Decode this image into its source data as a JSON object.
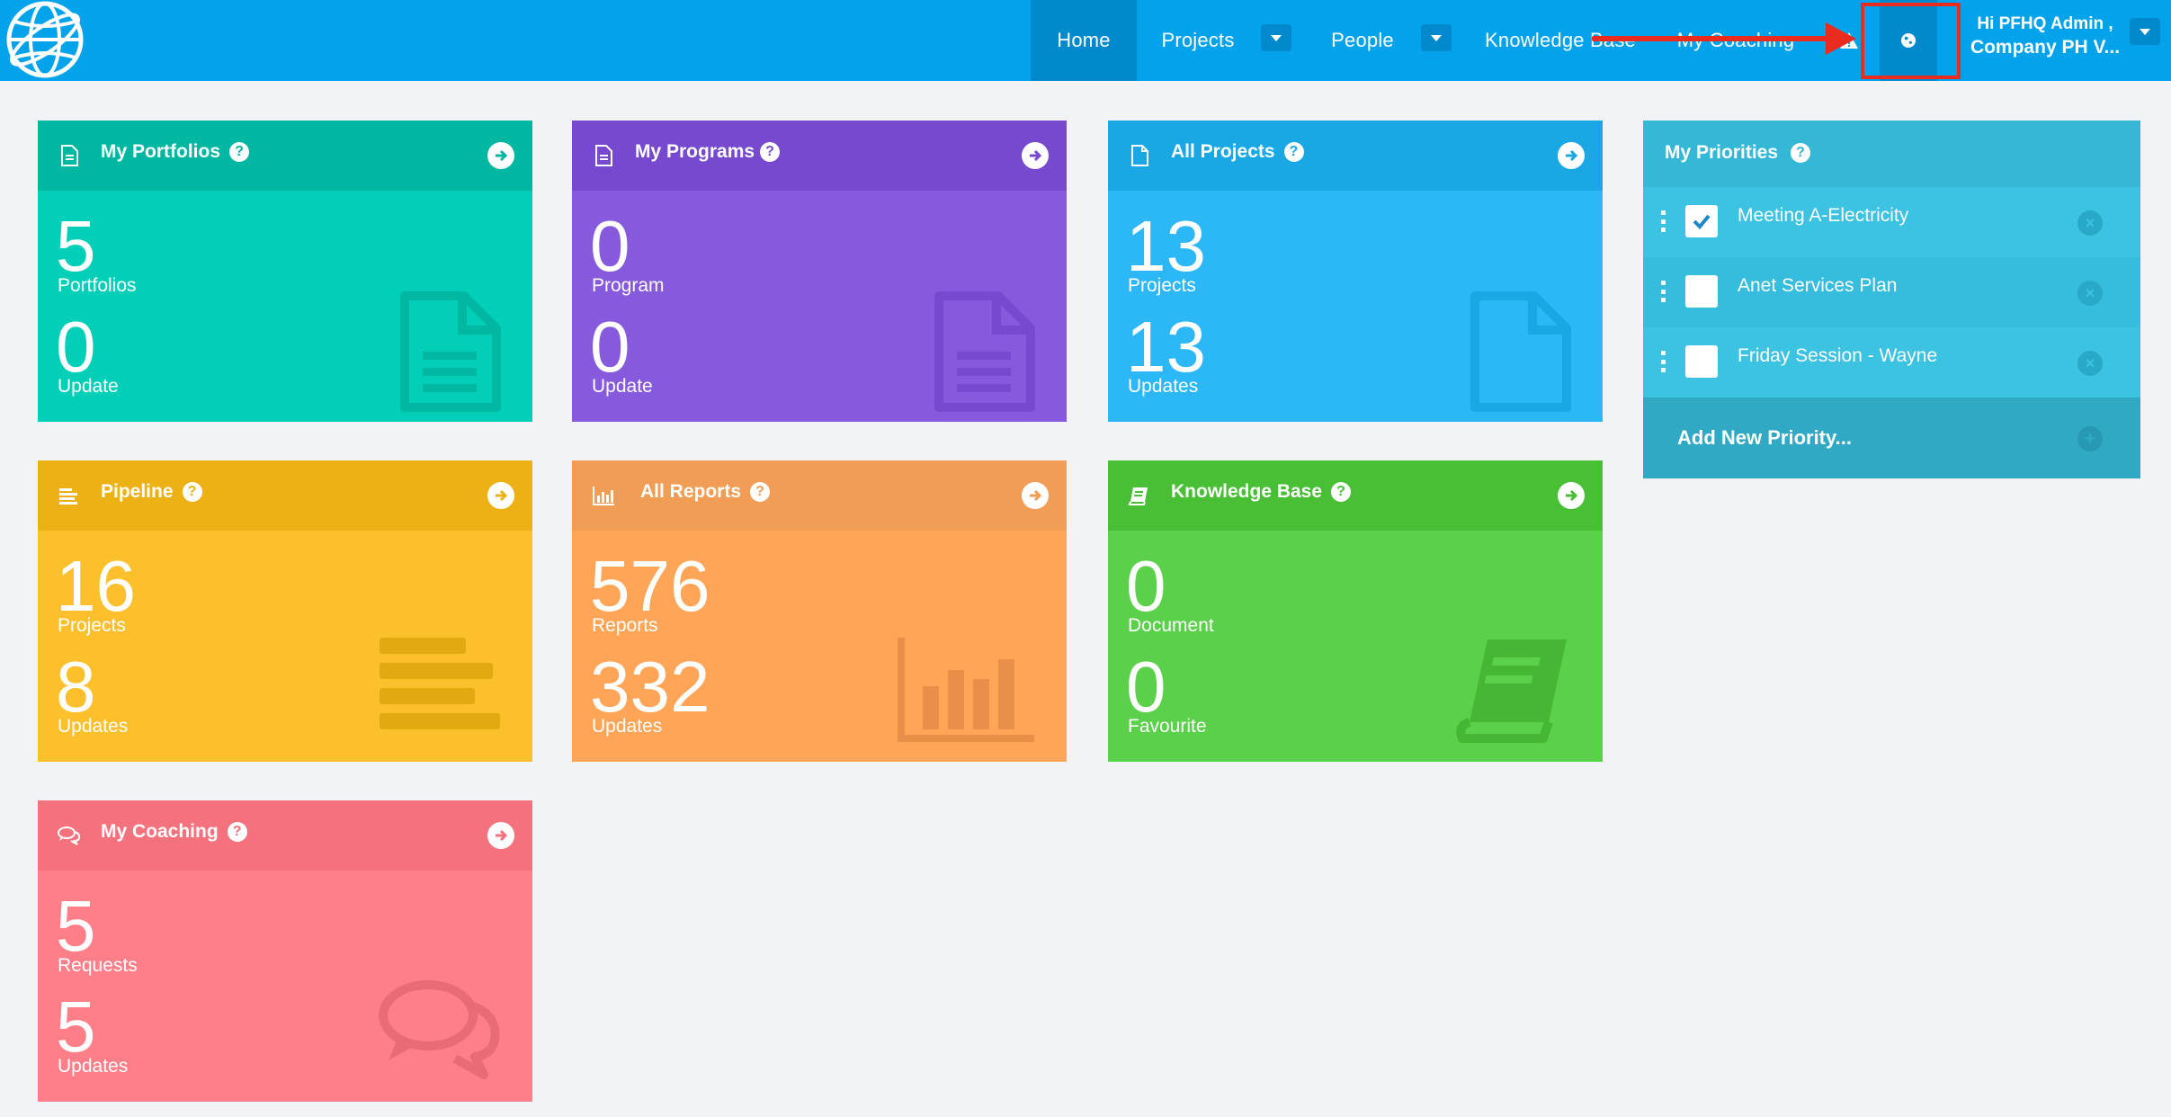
{
  "nav": {
    "home": "Home",
    "projects": "Projects",
    "people": "People",
    "knowledge_base": "Knowledge Base",
    "my_coaching": "My Coaching"
  },
  "user": {
    "greeting": "Hi PFHQ Admin ,",
    "company": "Company PH V..."
  },
  "tiles": {
    "portfolios": {
      "title": "My Portfolios",
      "num1": "5",
      "label1": "Portfolios",
      "num2": "0",
      "label2": "Update",
      "head_color": "#00b7a1",
      "body_color": "#01cfb7"
    },
    "programs": {
      "title": "My Programs",
      "num1": "0",
      "label1": "Program",
      "num2": "0",
      "label2": "Update",
      "head_color": "#7649cf",
      "body_color": "#8759dc"
    },
    "projects": {
      "title": "All Projects",
      "num1": "13",
      "label1": "Projects",
      "num2": "13",
      "label2": "Updates",
      "head_color": "#1aa8e5",
      "body_color": "#2cb7f6"
    },
    "pipeline": {
      "title": "Pipeline",
      "num1": "16",
      "label1": "Projects",
      "num2": "8",
      "label2": "Updates",
      "head_color": "#ecb114",
      "body_color": "#fbc02b"
    },
    "reports": {
      "title": "All Reports",
      "num1": "576",
      "label1": "Reports",
      "num2": "332",
      "label2": "Updates",
      "head_color": "#f29d55",
      "body_color": "#ffa557"
    },
    "knowledge": {
      "title": "Knowledge Base",
      "num1": "0",
      "label1": "Document",
      "num2": "0",
      "label2": "Favourite",
      "head_color": "#49bf35",
      "body_color": "#5bd04a"
    },
    "coaching": {
      "title": "My Coaching",
      "num1": "5",
      "label1": "Requests",
      "num2": "5",
      "label2": "Updates",
      "head_color": "#f4727e",
      "body_color": "#ff7f88"
    }
  },
  "priorities": {
    "title": "My Priorities",
    "items": [
      {
        "text": "Meeting A-Electricity",
        "checked": true
      },
      {
        "text": "Anet Services Plan",
        "checked": false
      },
      {
        "text": "Friday Session - Wayne",
        "checked": false
      }
    ],
    "add_label": "Add New Priority..."
  },
  "help_glyph": "?",
  "close_glyph": "×",
  "plus_glyph": "+"
}
